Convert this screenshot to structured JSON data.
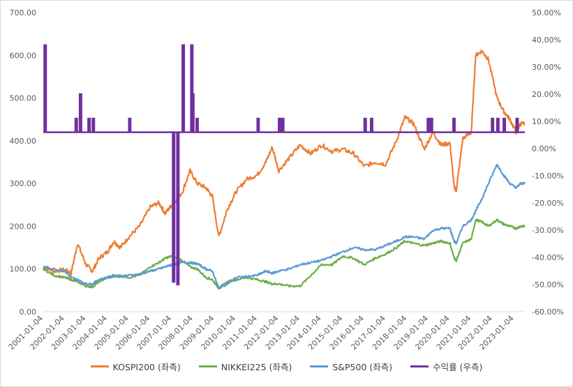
{
  "chart_data": {
    "type": "line",
    "title": "",
    "xlabel": "",
    "ylabel": "",
    "x_tick_labels": [
      "2001-01-04",
      "2002-01-04",
      "2003-01-04",
      "2004-01-04",
      "2005-01-04",
      "2006-01-04",
      "2007-01-04",
      "2008-01-04",
      "2009-01-04",
      "2010-01-04",
      "2011-01-04",
      "2012-01-04",
      "2013-01-04",
      "2014-01-04",
      "2015-01-04",
      "2016-01-04",
      "2017-01-04",
      "2018-01-04",
      "2019-01-04",
      "2020-01-04",
      "2021-01-04",
      "2022-01-04",
      "2023-01-04"
    ],
    "y_left": {
      "range": [
        0,
        700
      ],
      "ticks": [
        "0.00",
        "100.00",
        "200.00",
        "300.00",
        "400.00",
        "500.00",
        "600.00",
        "700.00"
      ]
    },
    "y_right": {
      "range": [
        -60,
        50
      ],
      "ticks": [
        "-60.00%",
        "-50.00%",
        "-40.00%",
        "-30.00%",
        "-20.00%",
        "-10.00%",
        "0.00%",
        "10.00%",
        "20.00%",
        "30.00%",
        "40.00%",
        "50.00%"
      ]
    },
    "grid": false,
    "legend_position": "bottom",
    "x": [
      2001.0,
      2001.5,
      2002.0,
      2002.3,
      2002.6,
      2003.0,
      2003.3,
      2003.6,
      2004.0,
      2004.3,
      2004.6,
      2005.0,
      2005.5,
      2006.0,
      2006.4,
      2006.7,
      2007.0,
      2007.5,
      2007.85,
      2008.2,
      2008.6,
      2008.9,
      2009.2,
      2009.6,
      2010.0,
      2010.5,
      2011.0,
      2011.4,
      2011.7,
      2012.0,
      2012.5,
      2013.0,
      2013.5,
      2014.0,
      2014.5,
      2015.0,
      2015.5,
      2016.0,
      2016.5,
      2017.0,
      2017.5,
      2017.9,
      2018.3,
      2018.8,
      2019.2,
      2019.6,
      2020.0,
      2020.2,
      2020.3,
      2020.6,
      2021.0,
      2021.2,
      2021.5,
      2021.8,
      2022.2,
      2022.5,
      2022.8,
      2023.1,
      2023.3,
      2023.5
    ],
    "series": [
      {
        "name": "KOSPI200 (좌측)",
        "axis": "left",
        "color": "#ED7D31",
        "values": [
          105,
          95,
          98,
          90,
          160,
          110,
          95,
          125,
          140,
          165,
          150,
          175,
          200,
          245,
          255,
          230,
          250,
          280,
          330,
          300,
          290,
          270,
          175,
          240,
          280,
          310,
          320,
          350,
          385,
          330,
          360,
          390,
          370,
          390,
          375,
          380,
          370,
          340,
          350,
          345,
          400,
          455,
          440,
          380,
          420,
          390,
          395,
          290,
          285,
          405,
          420,
          600,
          610,
          590,
          500,
          470,
          450,
          420,
          440,
          440
        ]
      },
      {
        "name": "NIKKEI225 (좌측)",
        "axis": "left",
        "color": "#70AD47",
        "values": [
          100,
          85,
          80,
          75,
          70,
          60,
          58,
          70,
          80,
          82,
          85,
          80,
          85,
          105,
          115,
          125,
          130,
          120,
          105,
          100,
          80,
          75,
          55,
          70,
          75,
          80,
          75,
          70,
          65,
          65,
          60,
          60,
          85,
          110,
          110,
          130,
          125,
          110,
          125,
          135,
          150,
          165,
          160,
          155,
          160,
          165,
          160,
          125,
          120,
          160,
          170,
          215,
          210,
          200,
          215,
          205,
          200,
          195,
          200,
          200
        ]
      },
      {
        "name": "S&P500 (좌측)",
        "axis": "left",
        "color": "#5B9BD5",
        "values": [
          105,
          100,
          95,
          80,
          75,
          65,
          65,
          75,
          80,
          85,
          82,
          85,
          88,
          95,
          100,
          105,
          110,
          115,
          115,
          112,
          100,
          95,
          55,
          65,
          80,
          82,
          85,
          95,
          90,
          95,
          100,
          110,
          115,
          120,
          130,
          140,
          150,
          145,
          145,
          155,
          165,
          175,
          175,
          170,
          190,
          195,
          195,
          165,
          160,
          200,
          215,
          235,
          265,
          300,
          345,
          320,
          300,
          290,
          300,
          300
        ]
      },
      {
        "name": "수익률 (우측)",
        "axis": "right",
        "color": "#7030A0",
        "values": [
          6,
          38,
          11,
          6,
          20,
          6,
          11,
          6,
          6,
          6,
          6,
          6,
          6,
          6,
          6,
          6,
          6,
          6,
          6,
          6,
          6,
          6,
          6,
          6,
          6,
          6,
          6,
          6,
          6,
          6,
          6,
          6,
          6,
          6,
          6,
          6,
          6,
          6,
          6,
          6,
          6,
          6,
          6,
          6,
          6,
          6,
          6,
          6,
          6,
          6,
          6,
          6,
          6,
          6,
          6,
          6,
          6,
          6,
          6,
          6
        ]
      }
    ]
  },
  "legend": [
    {
      "label": "KOSPI200 (좌측)",
      "color": "#ED7D31"
    },
    {
      "label": "NIKKEI225 (좌측)",
      "color": "#70AD47"
    },
    {
      "label": "S&P500 (좌측)",
      "color": "#5B9BD5"
    },
    {
      "label": "수익률 (우측)",
      "color": "#7030A0"
    }
  ],
  "return_spikes": [
    {
      "x": 2001.05,
      "value": 38
    },
    {
      "x": 2007.05,
      "value": -49
    },
    {
      "x": 2007.25,
      "value": -50
    },
    {
      "x": 2007.5,
      "value": 38
    },
    {
      "x": 2007.9,
      "value": 38
    },
    {
      "x": 2002.7,
      "value": 20
    },
    {
      "x": 2007.95,
      "value": 20
    },
    {
      "x": 2008.15,
      "value": 11
    },
    {
      "x": 2002.5,
      "value": 11
    },
    {
      "x": 2003.1,
      "value": 11
    },
    {
      "x": 2003.3,
      "value": 11
    },
    {
      "x": 2005.0,
      "value": 11
    },
    {
      "x": 2011.0,
      "value": 11
    },
    {
      "x": 2012.0,
      "value": 11
    },
    {
      "x": 2012.15,
      "value": 11
    },
    {
      "x": 2016.0,
      "value": 11
    },
    {
      "x": 2016.3,
      "value": 11
    },
    {
      "x": 2018.95,
      "value": 11
    },
    {
      "x": 2019.1,
      "value": 11
    },
    {
      "x": 2020.15,
      "value": 11
    },
    {
      "x": 2021.95,
      "value": 11
    },
    {
      "x": 2022.2,
      "value": 11
    },
    {
      "x": 2022.5,
      "value": 11
    },
    {
      "x": 2023.1,
      "value": 11
    }
  ]
}
